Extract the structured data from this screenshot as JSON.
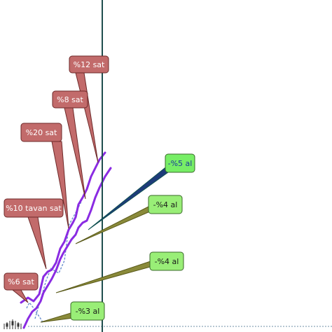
{
  "chart": {
    "sell_labels": [
      {
        "id": "sell-12",
        "text": "%12 sat"
      },
      {
        "id": "sell-8",
        "text": "%8 sat"
      },
      {
        "id": "sell-20",
        "text": "%20 sat"
      },
      {
        "id": "sell-10-tavan",
        "text": "%10 tavan sat"
      },
      {
        "id": "sell-6",
        "text": "%6 sat"
      }
    ],
    "buy_labels": [
      {
        "id": "buy-5",
        "text": "-%5 al"
      },
      {
        "id": "buy-4-upper",
        "text": "-%4 al"
      },
      {
        "id": "buy-4-lower",
        "text": "-%4 al"
      },
      {
        "id": "buy-3",
        "text": "-%3 al"
      }
    ],
    "colors": {
      "sell_fill": "#c26b6b",
      "sell_stroke": "#6e2a2a",
      "buy_fill_bright": "#77ee66",
      "buy_fill": "#99ee77",
      "buy_stroke": "#3a6a2a",
      "buy_5_text": "#1a3a9a",
      "price_line": "#8a2be2",
      "cursor_line": "#1f4e4e",
      "arrow": "#6b8fcf",
      "baseline": "#6f8fa6"
    }
  }
}
